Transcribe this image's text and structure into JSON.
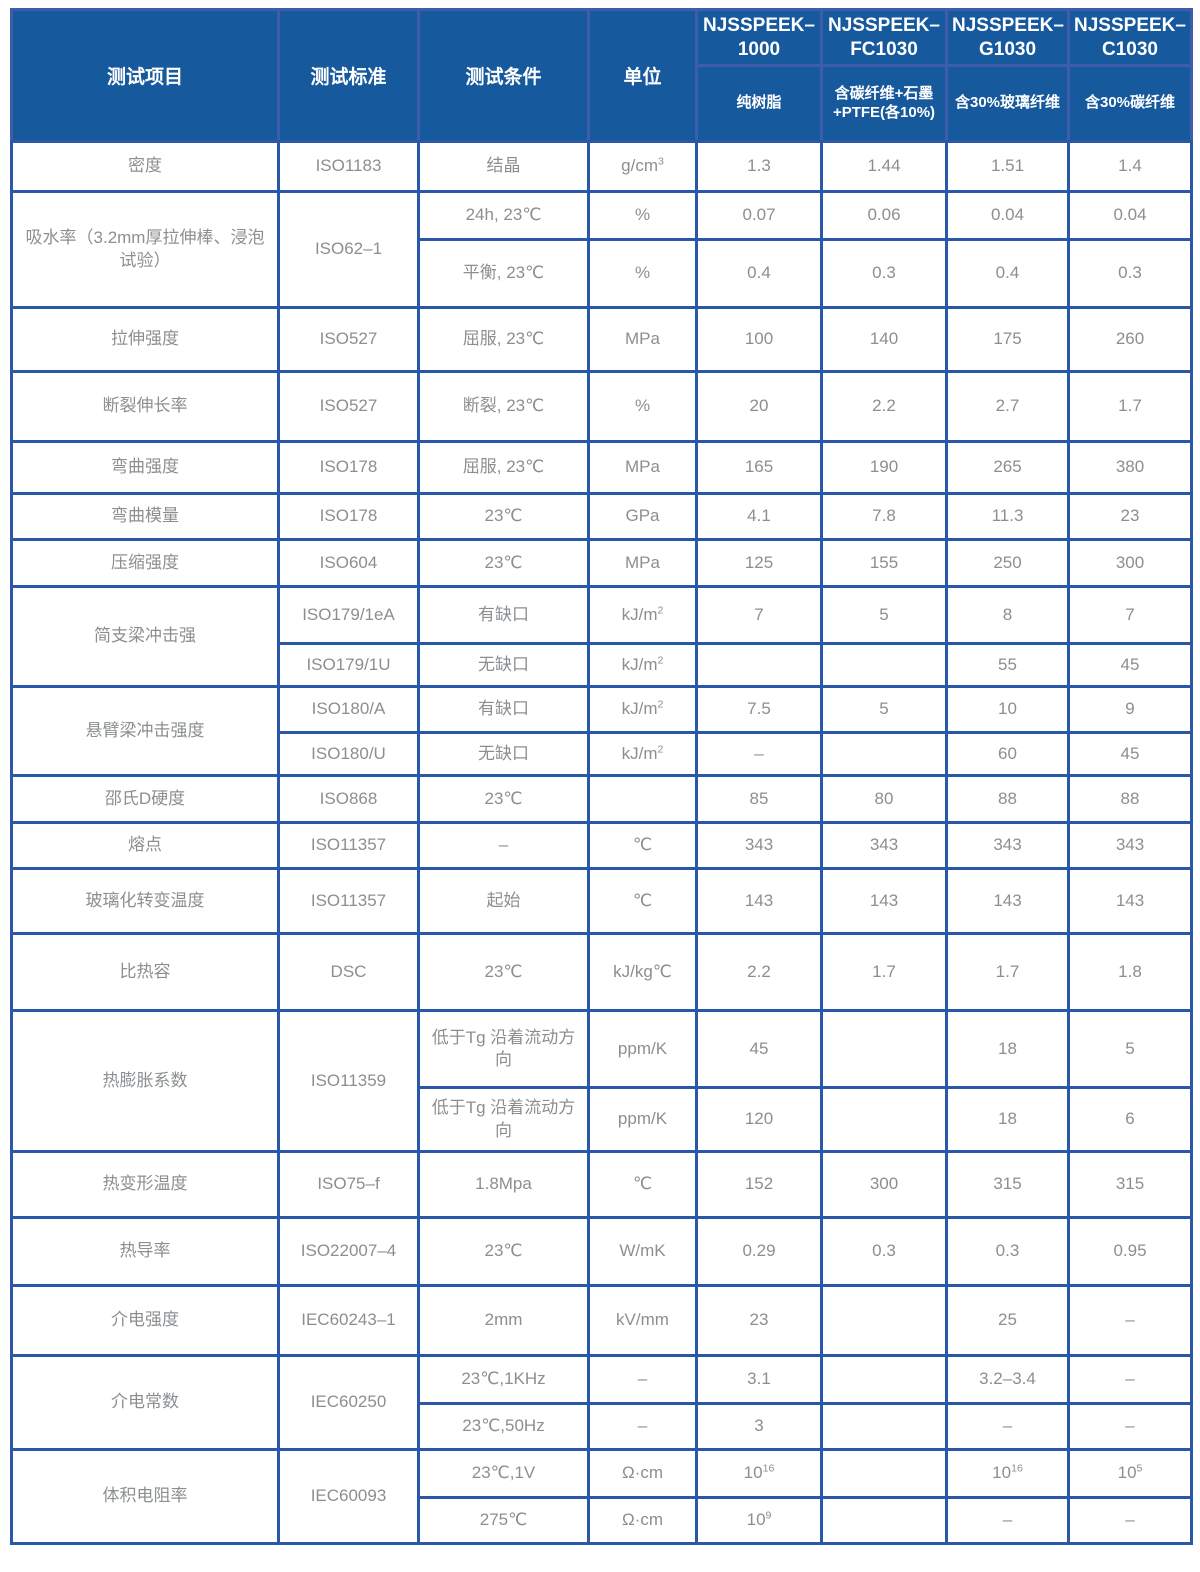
{
  "colors": {
    "header_bg": "#17599d",
    "grid": "#2b57a9",
    "header_grid": "#3f5cab",
    "body_text": "#8b8f92",
    "header_text": "#ffffff"
  },
  "table": {
    "columns": [
      "测试项目",
      "测试标准",
      "测试条件",
      "单位"
    ],
    "products": [
      {
        "name": "NJSSPEEK–1000",
        "desc": "纯树脂"
      },
      {
        "name": "NJSSPEEK–FC1030",
        "desc": "含碳纤维+石墨\n+PTFE(各10%)"
      },
      {
        "name": "NJSSPEEK–G1030",
        "desc": "含30%玻璃纤维"
      },
      {
        "name": "NJSSPEEK–C1030",
        "desc": "含30%碳纤维"
      }
    ],
    "rows": [
      {
        "cells": [
          {
            "text": "密度"
          },
          {
            "text": "ISO1183"
          },
          {
            "text": "结晶"
          },
          {
            "text": "g/cm^3"
          },
          {
            "text": "1.3"
          },
          {
            "text": "1.44"
          },
          {
            "text": "1.51"
          },
          {
            "text": "1.4"
          }
        ]
      },
      {
        "cells": [
          {
            "text": "吸水率（3.2mm厚拉伸棒、浸泡试验）",
            "rowspan": 2
          },
          {
            "text": "ISO62–1",
            "rowspan": 2
          },
          {
            "text": "24h, 23℃"
          },
          {
            "text": "%"
          },
          {
            "text": "0.07"
          },
          {
            "text": "0.06"
          },
          {
            "text": "0.04"
          },
          {
            "text": "0.04"
          }
        ]
      },
      {
        "cells": [
          {
            "text": "平衡, 23℃"
          },
          {
            "text": "%"
          },
          {
            "text": "0.4"
          },
          {
            "text": "0.3"
          },
          {
            "text": "0.4"
          },
          {
            "text": "0.3"
          }
        ]
      },
      {
        "cells": [
          {
            "text": "拉伸强度"
          },
          {
            "text": "ISO527"
          },
          {
            "text": "屈服, 23℃"
          },
          {
            "text": "MPa"
          },
          {
            "text": "100"
          },
          {
            "text": "140"
          },
          {
            "text": "175"
          },
          {
            "text": "260"
          }
        ]
      },
      {
        "cells": [
          {
            "text": "断裂伸长率"
          },
          {
            "text": "ISO527"
          },
          {
            "text": "断裂, 23℃"
          },
          {
            "text": "%"
          },
          {
            "text": "20"
          },
          {
            "text": "2.2"
          },
          {
            "text": "2.7"
          },
          {
            "text": "1.7"
          }
        ]
      },
      {
        "cells": [
          {
            "text": "弯曲强度"
          },
          {
            "text": "ISO178"
          },
          {
            "text": "屈服, 23℃"
          },
          {
            "text": "MPa"
          },
          {
            "text": "165"
          },
          {
            "text": "190"
          },
          {
            "text": "265"
          },
          {
            "text": "380"
          }
        ]
      },
      {
        "cells": [
          {
            "text": "弯曲模量"
          },
          {
            "text": "ISO178"
          },
          {
            "text": "23℃"
          },
          {
            "text": "GPa"
          },
          {
            "text": "4.1"
          },
          {
            "text": "7.8"
          },
          {
            "text": "11.3"
          },
          {
            "text": "23"
          }
        ]
      },
      {
        "cells": [
          {
            "text": "压缩强度"
          },
          {
            "text": "ISO604"
          },
          {
            "text": "23℃"
          },
          {
            "text": "MPa"
          },
          {
            "text": "125"
          },
          {
            "text": "155"
          },
          {
            "text": "250"
          },
          {
            "text": "300"
          }
        ]
      },
      {
        "cells": [
          {
            "text": "简支梁冲击强",
            "rowspan": 2
          },
          {
            "text": "ISO179/1eA"
          },
          {
            "text": "有缺口"
          },
          {
            "text": "kJ/m^2"
          },
          {
            "text": "7"
          },
          {
            "text": "5"
          },
          {
            "text": "8"
          },
          {
            "text": "7"
          }
        ]
      },
      {
        "cells": [
          {
            "text": "ISO179/1U"
          },
          {
            "text": "无缺口"
          },
          {
            "text": "kJ/m^2"
          },
          {
            "text": ""
          },
          {
            "text": ""
          },
          {
            "text": "55"
          },
          {
            "text": "45"
          }
        ]
      },
      {
        "cells": [
          {
            "text": "悬臂梁冲击强度",
            "rowspan": 2
          },
          {
            "text": "ISO180/A"
          },
          {
            "text": "有缺口"
          },
          {
            "text": "kJ/m^2"
          },
          {
            "text": "7.5"
          },
          {
            "text": "5"
          },
          {
            "text": "10"
          },
          {
            "text": "9"
          }
        ]
      },
      {
        "cells": [
          {
            "text": "ISO180/U"
          },
          {
            "text": "无缺口"
          },
          {
            "text": "kJ/m^2"
          },
          {
            "text": "–"
          },
          {
            "text": ""
          },
          {
            "text": "60"
          },
          {
            "text": "45"
          }
        ]
      },
      {
        "cells": [
          {
            "text": "邵氏D硬度"
          },
          {
            "text": "ISO868"
          },
          {
            "text": "23℃"
          },
          {
            "text": ""
          },
          {
            "text": "85"
          },
          {
            "text": "80"
          },
          {
            "text": "88"
          },
          {
            "text": "88"
          }
        ]
      },
      {
        "cells": [
          {
            "text": "熔点"
          },
          {
            "text": "ISO11357"
          },
          {
            "text": "–"
          },
          {
            "text": "℃"
          },
          {
            "text": "343"
          },
          {
            "text": "343"
          },
          {
            "text": "343"
          },
          {
            "text": "343"
          }
        ]
      },
      {
        "cells": [
          {
            "text": "玻璃化转变温度"
          },
          {
            "text": "ISO11357"
          },
          {
            "text": "起始"
          },
          {
            "text": "℃"
          },
          {
            "text": "143"
          },
          {
            "text": "143"
          },
          {
            "text": "143"
          },
          {
            "text": "143"
          }
        ]
      },
      {
        "cells": [
          {
            "text": "比热容"
          },
          {
            "text": "DSC"
          },
          {
            "text": "23℃"
          },
          {
            "text": "kJ/kg℃"
          },
          {
            "text": "2.2"
          },
          {
            "text": "1.7"
          },
          {
            "text": "1.7"
          },
          {
            "text": "1.8"
          }
        ]
      },
      {
        "cells": [
          {
            "text": "热膨胀系数",
            "rowspan": 2
          },
          {
            "text": "ISO11359",
            "rowspan": 2
          },
          {
            "text": "低于Tg 沿着流动方向"
          },
          {
            "text": "ppm/K"
          },
          {
            "text": "45"
          },
          {
            "text": ""
          },
          {
            "text": "18"
          },
          {
            "text": "5"
          }
        ]
      },
      {
        "cells": [
          {
            "text": "低于Tg 沿着流动方向"
          },
          {
            "text": "ppm/K"
          },
          {
            "text": "120"
          },
          {
            "text": ""
          },
          {
            "text": "18"
          },
          {
            "text": "6"
          }
        ]
      },
      {
        "cells": [
          {
            "text": "热变形温度"
          },
          {
            "text": "ISO75–f"
          },
          {
            "text": "1.8Mpa"
          },
          {
            "text": "℃"
          },
          {
            "text": "152"
          },
          {
            "text": "300"
          },
          {
            "text": "315"
          },
          {
            "text": "315"
          }
        ]
      },
      {
        "cells": [
          {
            "text": "热导率"
          },
          {
            "text": "ISO22007–4"
          },
          {
            "text": "23℃"
          },
          {
            "text": "W/mK"
          },
          {
            "text": "0.29"
          },
          {
            "text": "0.3"
          },
          {
            "text": "0.3"
          },
          {
            "text": "0.95"
          }
        ]
      },
      {
        "cells": [
          {
            "text": "介电强度"
          },
          {
            "text": "IEC60243–1"
          },
          {
            "text": "2mm"
          },
          {
            "text": "kV/mm"
          },
          {
            "text": "23"
          },
          {
            "text": ""
          },
          {
            "text": "25"
          },
          {
            "text": "–"
          }
        ]
      },
      {
        "cells": [
          {
            "text": "介电常数",
            "rowspan": 2
          },
          {
            "text": "IEC60250",
            "rowspan": 2
          },
          {
            "text": "23℃,1KHz"
          },
          {
            "text": "–"
          },
          {
            "text": "3.1"
          },
          {
            "text": ""
          },
          {
            "text": "3.2–3.4"
          },
          {
            "text": "–"
          }
        ]
      },
      {
        "cells": [
          {
            "text": "23℃,50Hz"
          },
          {
            "text": "–"
          },
          {
            "text": "3"
          },
          {
            "text": ""
          },
          {
            "text": "–"
          },
          {
            "text": "–"
          }
        ]
      },
      {
        "cells": [
          {
            "text": "体积电阻率",
            "rowspan": 2
          },
          {
            "text": "IEC60093",
            "rowspan": 2
          },
          {
            "text": "23℃,1V"
          },
          {
            "text": "Ω·cm"
          },
          {
            "text": "10^16"
          },
          {
            "text": ""
          },
          {
            "text": "10^16"
          },
          {
            "text": "10^5"
          }
        ]
      },
      {
        "cells": [
          {
            "text": "275℃"
          },
          {
            "text": "Ω·cm"
          },
          {
            "text": "10^9"
          },
          {
            "text": ""
          },
          {
            "text": "–"
          },
          {
            "text": "–"
          }
        ]
      }
    ]
  }
}
